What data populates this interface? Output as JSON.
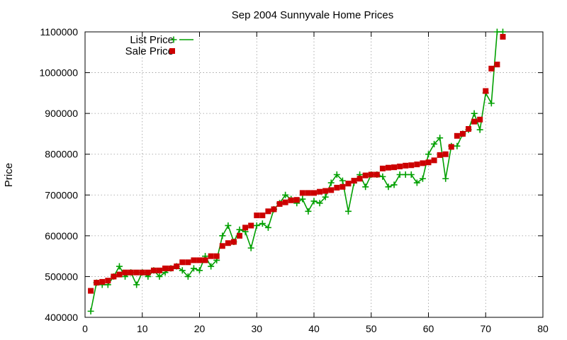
{
  "chart_data": {
    "type": "line",
    "title": "Sep 2004 Sunnyvale Home Prices",
    "xlabel": "",
    "ylabel": "Price",
    "xlim": [
      0,
      80
    ],
    "ylim": [
      400000,
      1100000
    ],
    "xticks": [
      0,
      10,
      20,
      30,
      40,
      50,
      60,
      70,
      80
    ],
    "yticks": [
      400000,
      500000,
      600000,
      700000,
      800000,
      900000,
      1000000,
      1100000
    ],
    "grid": true,
    "legend_position": "top-left",
    "series": [
      {
        "name": "List Price",
        "style": "line+cross",
        "color": "#00a000",
        "points": [
          [
            1,
            415000
          ],
          [
            2,
            485000
          ],
          [
            3,
            480000
          ],
          [
            4,
            480000
          ],
          [
            5,
            500000
          ],
          [
            6,
            525000
          ],
          [
            7,
            500000
          ],
          [
            8,
            510000
          ],
          [
            9,
            480000
          ],
          [
            10,
            510000
          ],
          [
            11,
            500000
          ],
          [
            12,
            515000
          ],
          [
            13,
            500000
          ],
          [
            14,
            510000
          ],
          [
            15,
            520000
          ],
          [
            16,
            525000
          ],
          [
            17,
            515000
          ],
          [
            18,
            500000
          ],
          [
            19,
            520000
          ],
          [
            20,
            515000
          ],
          [
            21,
            550000
          ],
          [
            22,
            525000
          ],
          [
            23,
            540000
          ],
          [
            24,
            600000
          ],
          [
            25,
            625000
          ],
          [
            26,
            585000
          ],
          [
            27,
            615000
          ],
          [
            28,
            610000
          ],
          [
            29,
            570000
          ],
          [
            30,
            625000
          ],
          [
            31,
            630000
          ],
          [
            32,
            620000
          ],
          [
            33,
            665000
          ],
          [
            34,
            680000
          ],
          [
            35,
            700000
          ],
          [
            36,
            690000
          ],
          [
            37,
            680000
          ],
          [
            38,
            690000
          ],
          [
            39,
            660000
          ],
          [
            40,
            685000
          ],
          [
            41,
            680000
          ],
          [
            42,
            695000
          ],
          [
            43,
            730000
          ],
          [
            44,
            750000
          ],
          [
            45,
            735000
          ],
          [
            46,
            660000
          ],
          [
            47,
            730000
          ],
          [
            48,
            750000
          ],
          [
            49,
            720000
          ],
          [
            50,
            750000
          ],
          [
            51,
            750000
          ],
          [
            52,
            745000
          ],
          [
            53,
            720000
          ],
          [
            54,
            725000
          ],
          [
            55,
            750000
          ],
          [
            56,
            750000
          ],
          [
            57,
            750000
          ],
          [
            58,
            730000
          ],
          [
            59,
            740000
          ],
          [
            60,
            800000
          ],
          [
            61,
            825000
          ],
          [
            62,
            840000
          ],
          [
            63,
            740000
          ],
          [
            64,
            820000
          ],
          [
            65,
            820000
          ],
          [
            66,
            850000
          ],
          [
            67,
            860000
          ],
          [
            68,
            900000
          ],
          [
            69,
            860000
          ],
          [
            70,
            950000
          ],
          [
            71,
            925000
          ],
          [
            72,
            1100000
          ],
          [
            73,
            1100000
          ]
        ]
      },
      {
        "name": "Sale Price",
        "style": "square",
        "color": "#cc0000",
        "points": [
          [
            1,
            465000
          ],
          [
            2,
            485000
          ],
          [
            3,
            487000
          ],
          [
            4,
            490000
          ],
          [
            5,
            500000
          ],
          [
            6,
            505000
          ],
          [
            7,
            510000
          ],
          [
            8,
            510000
          ],
          [
            9,
            510000
          ],
          [
            10,
            510000
          ],
          [
            11,
            510000
          ],
          [
            12,
            515000
          ],
          [
            13,
            515000
          ],
          [
            14,
            520000
          ],
          [
            15,
            520000
          ],
          [
            16,
            525000
          ],
          [
            17,
            535000
          ],
          [
            18,
            535000
          ],
          [
            19,
            540000
          ],
          [
            20,
            540000
          ],
          [
            21,
            540000
          ],
          [
            22,
            550000
          ],
          [
            23,
            550000
          ],
          [
            24,
            575000
          ],
          [
            25,
            582000
          ],
          [
            26,
            585000
          ],
          [
            27,
            600000
          ],
          [
            28,
            620000
          ],
          [
            29,
            625000
          ],
          [
            30,
            650000
          ],
          [
            31,
            650000
          ],
          [
            32,
            660000
          ],
          [
            33,
            665000
          ],
          [
            34,
            678000
          ],
          [
            35,
            682000
          ],
          [
            36,
            687000
          ],
          [
            37,
            688000
          ],
          [
            38,
            705000
          ],
          [
            39,
            705000
          ],
          [
            40,
            705000
          ],
          [
            41,
            708000
          ],
          [
            42,
            710000
          ],
          [
            43,
            712000
          ],
          [
            44,
            718000
          ],
          [
            45,
            720000
          ],
          [
            46,
            728000
          ],
          [
            47,
            735000
          ],
          [
            48,
            740000
          ],
          [
            49,
            748000
          ],
          [
            50,
            750000
          ],
          [
            51,
            750000
          ],
          [
            52,
            765000
          ],
          [
            53,
            767000
          ],
          [
            54,
            768000
          ],
          [
            55,
            770000
          ],
          [
            56,
            772000
          ],
          [
            57,
            773000
          ],
          [
            58,
            775000
          ],
          [
            59,
            778000
          ],
          [
            60,
            780000
          ],
          [
            61,
            785000
          ],
          [
            62,
            798000
          ],
          [
            63,
            800000
          ],
          [
            64,
            818000
          ],
          [
            65,
            845000
          ],
          [
            66,
            850000
          ],
          [
            67,
            862000
          ],
          [
            68,
            880000
          ],
          [
            69,
            885000
          ],
          [
            70,
            955000
          ],
          [
            71,
            1010000
          ],
          [
            72,
            1020000
          ],
          [
            73,
            1088000
          ]
        ]
      }
    ]
  }
}
